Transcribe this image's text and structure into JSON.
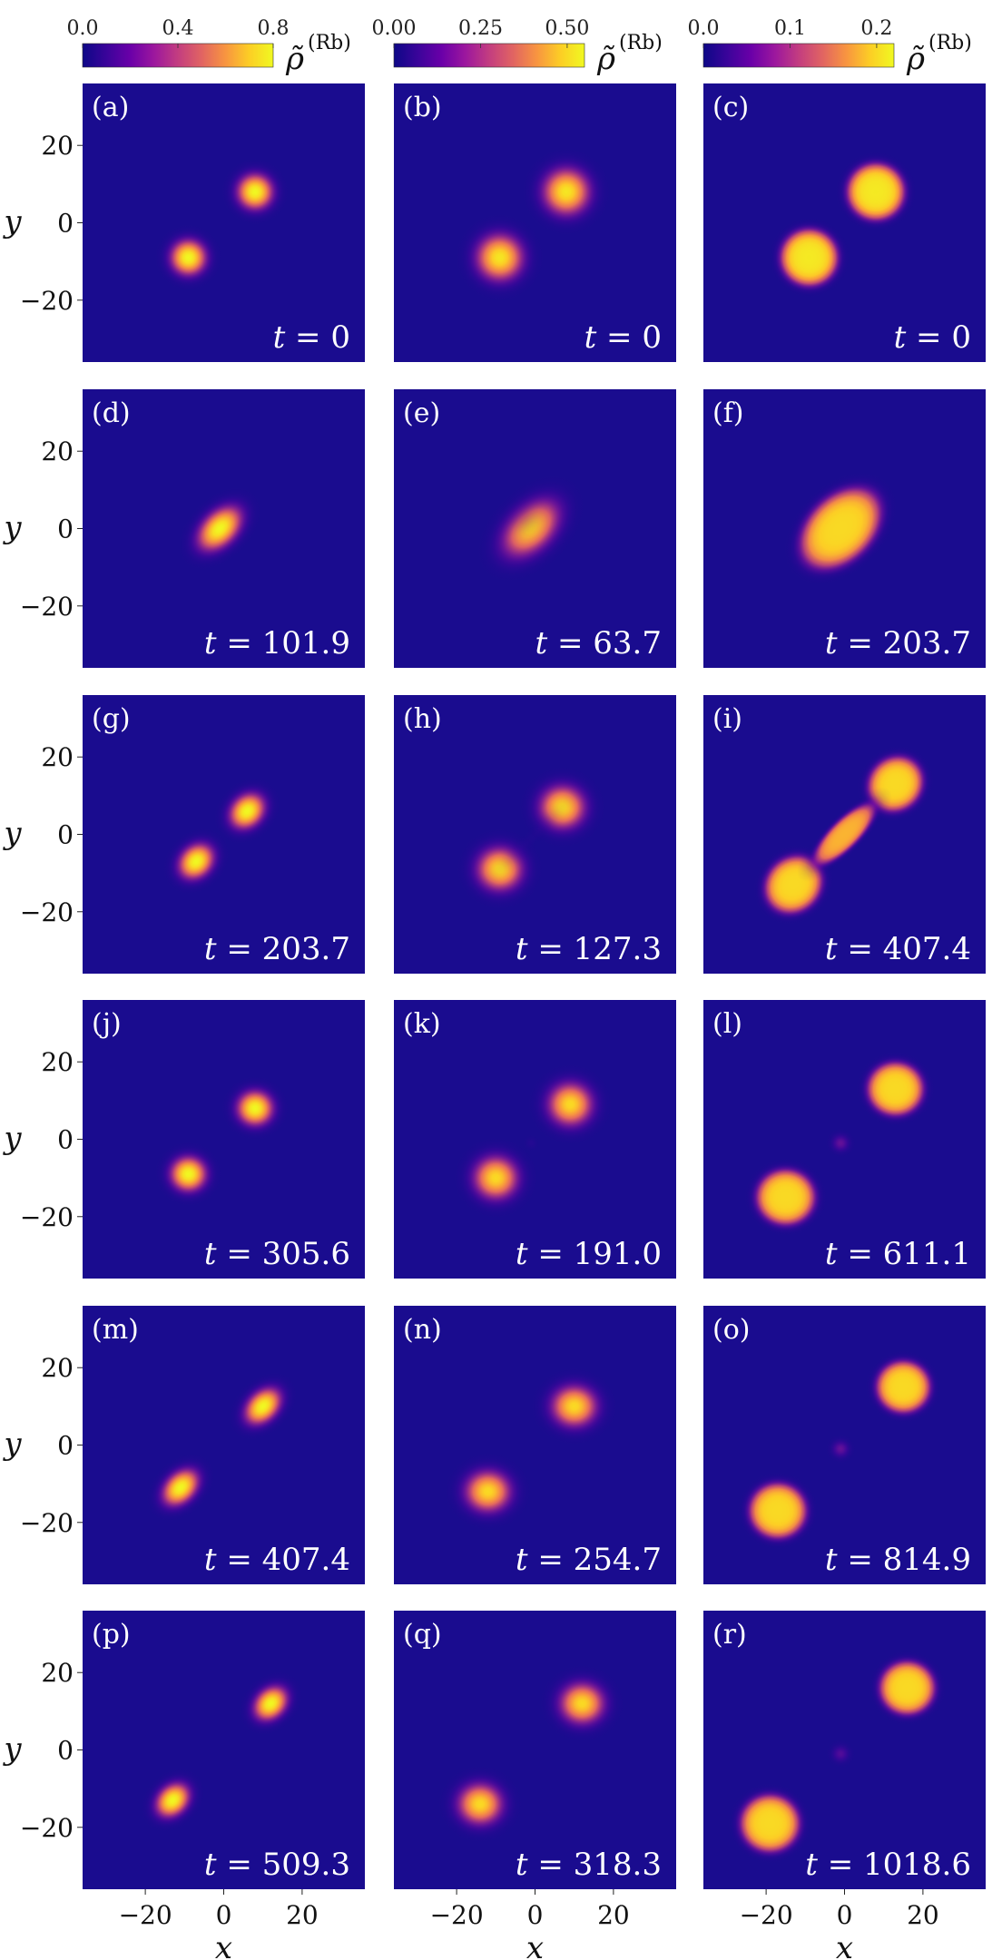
{
  "colors": {
    "background": "#1a0c8f",
    "colormap": [
      "#0d0887",
      "#3a049a",
      "#6a00a8",
      "#9c179e",
      "#c33d80",
      "#e16462",
      "#f89540",
      "#fcce25",
      "#f0f921"
    ]
  },
  "axes": {
    "xlabel": "x",
    "ylabel": "y",
    "xlim": [
      -36,
      36
    ],
    "ylim": [
      -36,
      36
    ],
    "xticks": [
      -20,
      0,
      20
    ],
    "yticks": [
      20,
      0,
      -20
    ],
    "xtick_labels": [
      "−20",
      "0",
      "20"
    ],
    "ytick_labels": [
      "20",
      "0",
      "−20"
    ]
  },
  "colorbars": [
    {
      "label_main": "ρ̃",
      "label_sup": "(Rb)",
      "range": [
        0,
        0.8
      ],
      "ticks": [
        0,
        0.4,
        0.8
      ],
      "tick_labels": [
        "0.0",
        "0.4",
        "0.8"
      ]
    },
    {
      "label_main": "ρ̃",
      "label_sup": "(Rb)",
      "range": [
        0,
        0.55
      ],
      "ticks": [
        0,
        0.25,
        0.5
      ],
      "tick_labels": [
        "0.00",
        "0.25",
        "0.50"
      ]
    },
    {
      "label_main": "ρ̃",
      "label_sup": "(Rb)",
      "range": [
        0,
        0.22
      ],
      "ticks": [
        0,
        0.1,
        0.2
      ],
      "tick_labels": [
        "0.0",
        "0.1",
        "0.2"
      ]
    }
  ],
  "chart_data": {
    "type": "heatmap",
    "quantity": "ρ̃(Rb)",
    "panels": [
      {
        "label": "(a)",
        "col": 0,
        "row": 0,
        "time_text": "t = 0",
        "blobs": [
          {
            "x": 8,
            "y": 8,
            "sx": 3.4,
            "sy": 3.4,
            "rot": 0,
            "amp": 0.8
          },
          {
            "x": -9,
            "y": -9,
            "sx": 3.4,
            "sy": 3.4,
            "rot": 0,
            "amp": 0.8
          }
        ]
      },
      {
        "label": "(b)",
        "col": 1,
        "row": 0,
        "time_text": "t = 0",
        "blobs": [
          {
            "x": 8,
            "y": 8,
            "sx": 4.5,
            "sy": 4.5,
            "rot": 0,
            "amp": 0.52
          },
          {
            "x": -9,
            "y": -9,
            "sx": 4.5,
            "sy": 4.5,
            "rot": 0,
            "amp": 0.52
          }
        ]
      },
      {
        "label": "(c)",
        "col": 2,
        "row": 0,
        "time_text": "t = 0",
        "blobs": [
          {
            "x": 8,
            "y": 8,
            "sx": 8.5,
            "sy": 8.5,
            "rot": 0,
            "amp": 0.21,
            "flat": true
          },
          {
            "x": -9,
            "y": -9,
            "sx": 8.5,
            "sy": 8.5,
            "rot": 0,
            "amp": 0.21,
            "flat": true
          }
        ]
      },
      {
        "label": "(d)",
        "col": 0,
        "row": 1,
        "time_text": "t = 101.9",
        "blobs": [
          {
            "x": -1,
            "y": 0,
            "sx": 5.0,
            "sy": 3.2,
            "rot": -45,
            "amp": 0.8
          }
        ]
      },
      {
        "label": "(e)",
        "col": 1,
        "row": 1,
        "time_text": "t = 63.7",
        "blobs": [
          {
            "x": -1,
            "y": 0,
            "sx": 6.6,
            "sy": 4.2,
            "rot": -45,
            "amp": 0.48
          },
          {
            "x": -3,
            "y": 3,
            "sx": 2.6,
            "sy": 2.6,
            "rot": 0,
            "amp": 0.08
          }
        ]
      },
      {
        "label": "(f)",
        "col": 2,
        "row": 1,
        "time_text": "t = 203.7",
        "blobs": [
          {
            "x": -1,
            "y": 0,
            "sx": 14.0,
            "sy": 9.5,
            "rot": -45,
            "amp": 0.2,
            "flat": true
          }
        ]
      },
      {
        "label": "(g)",
        "col": 0,
        "row": 2,
        "time_text": "t = 203.7",
        "blobs": [
          {
            "x": 6,
            "y": 6,
            "sx": 3.7,
            "sy": 3.0,
            "rot": -45,
            "amp": 0.8
          },
          {
            "x": -7,
            "y": -7,
            "sx": 3.7,
            "sy": 3.0,
            "rot": -45,
            "amp": 0.8
          }
        ]
      },
      {
        "label": "(h)",
        "col": 1,
        "row": 2,
        "time_text": "t = 127.3",
        "blobs": [
          {
            "x": 7,
            "y": 7,
            "sx": 4.4,
            "sy": 4.2,
            "rot": 0,
            "amp": 0.5
          },
          {
            "x": -9,
            "y": -9,
            "sx": 4.4,
            "sy": 4.2,
            "rot": 0,
            "amp": 0.5
          },
          {
            "x": -1,
            "y": -1,
            "sx": 7,
            "sy": 1.3,
            "rot": -45,
            "amp": 0.06
          }
        ]
      },
      {
        "label": "(i)",
        "col": 2,
        "row": 2,
        "time_text": "t = 407.4",
        "blobs": [
          {
            "x": 13,
            "y": 13,
            "sx": 8.5,
            "sy": 7.8,
            "rot": -45,
            "amp": 0.2,
            "flat": true
          },
          {
            "x": -13,
            "y": -13,
            "sx": 9.0,
            "sy": 8.0,
            "rot": -45,
            "amp": 0.2,
            "flat": true
          },
          {
            "x": 0,
            "y": 0,
            "sx": 12,
            "sy": 4.2,
            "rot": -45,
            "amp": 0.18,
            "flat": true
          }
        ]
      },
      {
        "label": "(j)",
        "col": 0,
        "row": 3,
        "time_text": "t = 305.6",
        "blobs": [
          {
            "x": 8,
            "y": 8,
            "sx": 3.4,
            "sy": 3.3,
            "rot": 0,
            "amp": 0.8
          },
          {
            "x": -9,
            "y": -9,
            "sx": 3.4,
            "sy": 3.3,
            "rot": 0,
            "amp": 0.8
          }
        ]
      },
      {
        "label": "(k)",
        "col": 1,
        "row": 3,
        "time_text": "t = 191.0",
        "blobs": [
          {
            "x": 9,
            "y": 9,
            "sx": 4.3,
            "sy": 4.2,
            "rot": 0,
            "amp": 0.5
          },
          {
            "x": -10,
            "y": -10,
            "sx": 4.3,
            "sy": 4.2,
            "rot": 0,
            "amp": 0.5
          },
          {
            "x": -1,
            "y": -1,
            "sx": 1.3,
            "sy": 1.3,
            "rot": 0,
            "amp": 0.08
          }
        ]
      },
      {
        "label": "(l)",
        "col": 2,
        "row": 3,
        "time_text": "t = 611.1",
        "blobs": [
          {
            "x": 13,
            "y": 13,
            "sx": 8.3,
            "sy": 8.0,
            "rot": 0,
            "amp": 0.2,
            "flat": true
          },
          {
            "x": -15,
            "y": -15,
            "sx": 8.7,
            "sy": 8.3,
            "rot": 0,
            "amp": 0.2,
            "flat": true
          },
          {
            "x": -1,
            "y": -1,
            "sx": 1.8,
            "sy": 1.8,
            "rot": 0,
            "amp": 0.08
          }
        ]
      },
      {
        "label": "(m)",
        "col": 0,
        "row": 4,
        "time_text": "t = 407.4",
        "blobs": [
          {
            "x": 10,
            "y": 10,
            "sx": 4.0,
            "sy": 2.8,
            "rot": -45,
            "amp": 0.8
          },
          {
            "x": -11,
            "y": -11,
            "sx": 4.0,
            "sy": 2.8,
            "rot": -45,
            "amp": 0.8
          }
        ]
      },
      {
        "label": "(n)",
        "col": 1,
        "row": 4,
        "time_text": "t = 254.7",
        "blobs": [
          {
            "x": 10,
            "y": 10,
            "sx": 4.4,
            "sy": 4.0,
            "rot": 0,
            "amp": 0.5
          },
          {
            "x": -12,
            "y": -12,
            "sx": 4.4,
            "sy": 4.0,
            "rot": 0,
            "amp": 0.5
          }
        ]
      },
      {
        "label": "(o)",
        "col": 2,
        "row": 4,
        "time_text": "t = 814.9",
        "blobs": [
          {
            "x": 15,
            "y": 15,
            "sx": 8.0,
            "sy": 7.8,
            "rot": 0,
            "amp": 0.2,
            "flat": true
          },
          {
            "x": -17,
            "y": -17,
            "sx": 8.5,
            "sy": 8.3,
            "rot": 0,
            "amp": 0.2,
            "flat": true
          },
          {
            "x": -1,
            "y": -1,
            "sx": 1.8,
            "sy": 1.8,
            "rot": 0,
            "amp": 0.08
          }
        ]
      },
      {
        "label": "(p)",
        "col": 0,
        "row": 5,
        "time_text": "t = 509.3",
        "blobs": [
          {
            "x": 12,
            "y": 12,
            "sx": 3.6,
            "sy": 2.8,
            "rot": -45,
            "amp": 0.8
          },
          {
            "x": -13,
            "y": -13,
            "sx": 3.6,
            "sy": 2.8,
            "rot": -45,
            "amp": 0.8
          }
        ]
      },
      {
        "label": "(q)",
        "col": 1,
        "row": 5,
        "time_text": "t = 318.3",
        "blobs": [
          {
            "x": 12,
            "y": 12,
            "sx": 4.3,
            "sy": 4.0,
            "rot": 0,
            "amp": 0.5
          },
          {
            "x": -14,
            "y": -14,
            "sx": 4.3,
            "sy": 4.0,
            "rot": 0,
            "amp": 0.5
          }
        ]
      },
      {
        "label": "(r)",
        "col": 2,
        "row": 5,
        "time_text": "t = 1018.6",
        "blobs": [
          {
            "x": 16,
            "y": 16,
            "sx": 8.2,
            "sy": 8.0,
            "rot": 0,
            "amp": 0.2,
            "flat": true
          },
          {
            "x": -19,
            "y": -19,
            "sx": 8.8,
            "sy": 8.6,
            "rot": 0,
            "amp": 0.2,
            "flat": true
          },
          {
            "x": -1,
            "y": -1,
            "sx": 1.8,
            "sy": 1.8,
            "rot": 0,
            "amp": 0.07
          }
        ]
      }
    ]
  }
}
